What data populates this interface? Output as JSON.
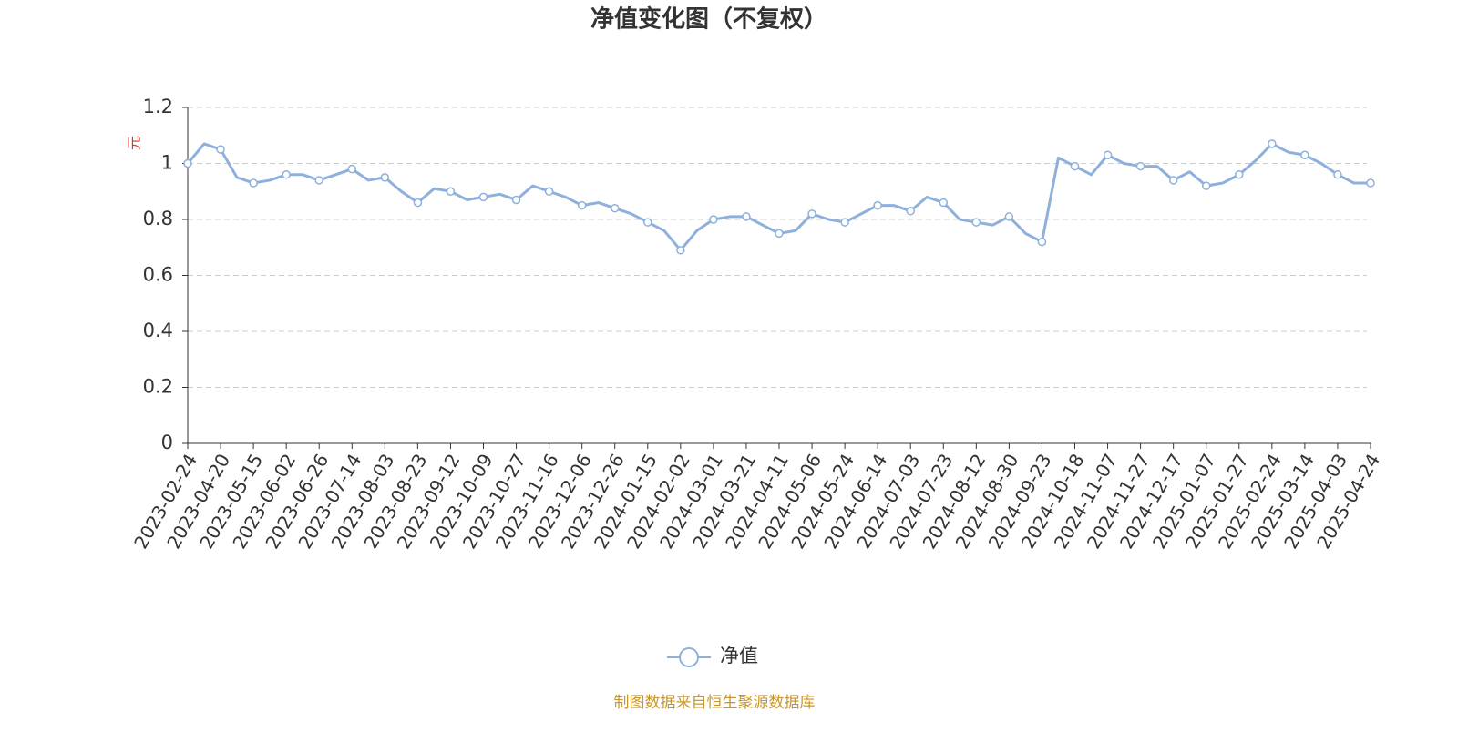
{
  "chart_data": {
    "type": "line",
    "title": "净值变化图（不复权）",
    "y_label": "元",
    "source": "制图数据来自恒生聚源数据库",
    "categories": [
      "2023-02-24",
      null,
      "2023-04-20",
      null,
      "2023-05-15",
      null,
      "2023-06-02",
      null,
      "2023-06-26",
      null,
      "2023-07-14",
      null,
      "2023-08-03",
      null,
      "2023-08-23",
      null,
      "2023-09-12",
      null,
      "2023-10-09",
      null,
      "2023-10-27",
      null,
      "2023-11-16",
      null,
      "2023-12-06",
      null,
      "2023-12-26",
      null,
      "2024-01-15",
      null,
      "2024-02-02",
      null,
      "2024-03-01",
      null,
      "2024-03-21",
      null,
      "2024-04-11",
      null,
      "2024-05-06",
      null,
      "2024-05-24",
      null,
      "2024-06-14",
      null,
      "2024-07-03",
      null,
      "2024-07-23",
      null,
      "2024-08-12",
      null,
      "2024-08-30",
      null,
      "2024-09-23",
      null,
      "2024-10-18",
      null,
      "2024-11-07",
      null,
      "2024-11-27",
      null,
      "2024-12-17",
      null,
      "2025-01-07",
      null,
      "2025-01-27",
      null,
      "2025-02-24",
      null,
      "2025-03-14",
      null,
      "2025-04-03",
      null,
      "2025-04-24"
    ],
    "series": [
      {
        "name": "净值",
        "color": "#8eb0dc",
        "values": [
          1.0,
          1.07,
          1.05,
          0.95,
          0.93,
          0.94,
          0.96,
          0.96,
          0.94,
          0.96,
          0.98,
          0.94,
          0.95,
          0.9,
          0.86,
          0.91,
          0.9,
          0.87,
          0.88,
          0.89,
          0.87,
          0.92,
          0.9,
          0.88,
          0.85,
          0.86,
          0.84,
          0.82,
          0.79,
          0.76,
          0.69,
          0.76,
          0.8,
          0.81,
          0.81,
          0.78,
          0.75,
          0.76,
          0.82,
          0.8,
          0.79,
          0.82,
          0.85,
          0.85,
          0.83,
          0.88,
          0.86,
          0.8,
          0.79,
          0.78,
          0.81,
          0.75,
          0.72,
          1.02,
          0.99,
          0.96,
          1.03,
          1.0,
          0.99,
          0.99,
          0.94,
          0.97,
          0.92,
          0.93,
          0.96,
          1.01,
          1.07,
          1.04,
          1.03,
          1.0,
          0.96,
          0.93,
          0.93
        ]
      }
    ],
    "ylim": [
      0,
      1.2
    ],
    "yticks": [
      0,
      0.2,
      0.4,
      0.6,
      0.8,
      1,
      1.2
    ],
    "grid": true
  }
}
